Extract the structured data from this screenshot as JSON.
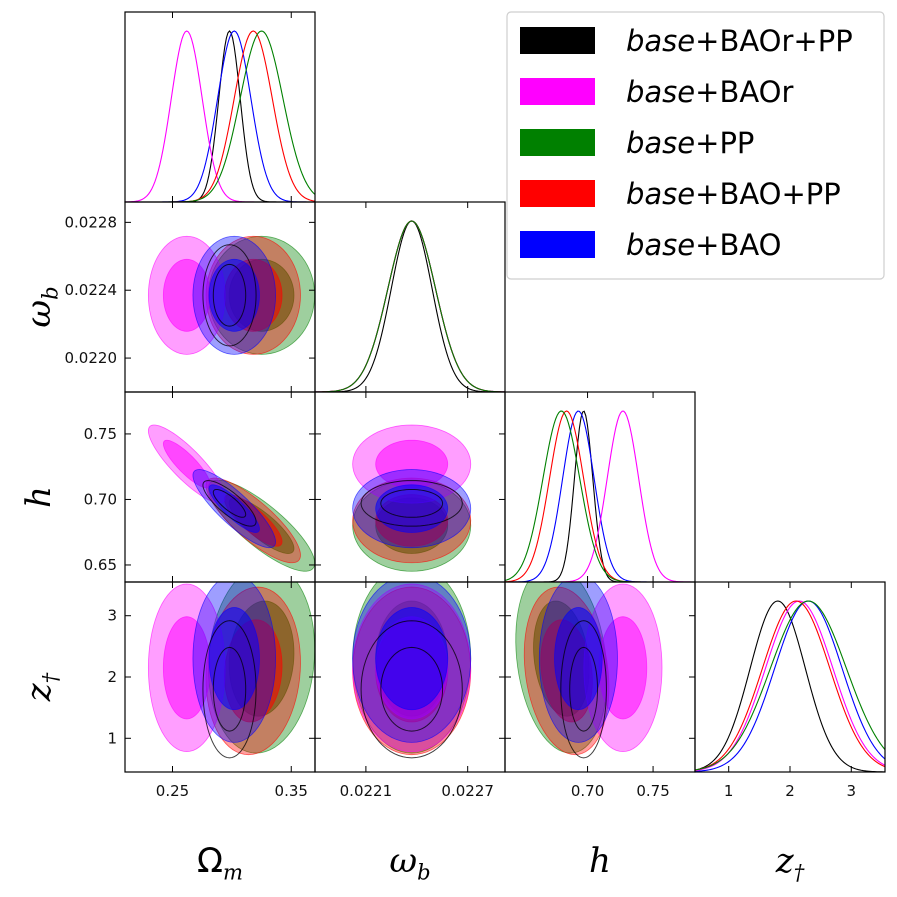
{
  "chart_data": {
    "type": "corner",
    "parameters": [
      {
        "id": "om",
        "label": "Ω",
        "sub": "m",
        "range": [
          0.21,
          0.37
        ],
        "ticks": [
          0.25,
          0.35
        ],
        "tick_labels": [
          "0.25",
          "0.35"
        ]
      },
      {
        "id": "wb",
        "label": "ω",
        "sub": "b",
        "range": [
          0.0218,
          0.02292
        ],
        "ticks": [
          0.0221,
          0.0227
        ],
        "tick_labels": [
          "0.0221",
          "0.0227"
        ],
        "y_ticks": [
          0.022,
          0.0224,
          0.0228
        ],
        "y_tick_labels": [
          "0.0220",
          "0.0224",
          "0.0228"
        ]
      },
      {
        "id": "h",
        "label": "h",
        "sub": "",
        "range": [
          0.637,
          0.782
        ],
        "ticks": [
          0.7,
          0.75
        ],
        "tick_labels": [
          "0.70",
          "0.75"
        ],
        "y_ticks": [
          0.65,
          0.7,
          0.75
        ],
        "y_tick_labels": [
          "0.65",
          "0.70",
          "0.75"
        ]
      },
      {
        "id": "z",
        "label": "z",
        "sub": "†",
        "range": [
          0.45,
          3.55
        ],
        "ticks": [
          1,
          2,
          3
        ],
        "tick_labels": [
          "1",
          "2",
          "3"
        ],
        "y_ticks": [
          1,
          2,
          3
        ],
        "y_tick_labels": [
          "1",
          "2",
          "3"
        ]
      }
    ],
    "legend": {
      "placement": "top-right",
      "entries": [
        {
          "italic": "base",
          "rest": "+BAOr+PP",
          "color": "#000000"
        },
        {
          "italic": "base",
          "rest": "+BAOr",
          "color": "#ff00ff"
        },
        {
          "italic": "base",
          "rest": "+PP",
          "color": "#008000"
        },
        {
          "italic": "base",
          "rest": "+BAO+PP",
          "color": "#ff0000"
        },
        {
          "italic": "base",
          "rest": "+BAO",
          "color": "#0000ff"
        }
      ]
    },
    "series": [
      {
        "name": "base+PP",
        "color": "#008000",
        "mean": {
          "om": 0.325,
          "wb": 0.02237,
          "h": 0.68,
          "z": 2.3
        },
        "sigma": {
          "om": 0.018,
          "wb": 0.00014,
          "h": 0.014,
          "z": 0.62
        },
        "corr": {
          "om-h": -0.82,
          "om-z": 0.1,
          "h-z": -0.2,
          "om-wb": 0.0,
          "wb-h": 0.0,
          "wb-z": 0.0
        },
        "filled": true,
        "outline": false
      },
      {
        "name": "base+BAO+PP",
        "color": "#ff0000",
        "mean": {
          "om": 0.318,
          "wb": 0.02237,
          "h": 0.684,
          "z": 2.1
        },
        "sigma": {
          "om": 0.016,
          "wb": 0.00014,
          "h": 0.013,
          "z": 0.55
        },
        "corr": {
          "om-h": -0.82,
          "om-z": 0.1,
          "h-z": -0.2,
          "om-wb": 0.0,
          "wb-h": 0.0,
          "wb-z": 0.0
        },
        "filled": true,
        "outline": false
      },
      {
        "name": "base+BAOr",
        "color": "#ff00ff",
        "mean": {
          "om": 0.262,
          "wb": 0.02237,
          "h": 0.727,
          "z": 2.15
        },
        "sigma": {
          "om": 0.013,
          "wb": 0.00014,
          "h": 0.012,
          "z": 0.55
        },
        "corr": {
          "om-h": -0.85,
          "om-z": 0.0,
          "h-z": 0.0,
          "om-wb": 0.0,
          "wb-h": 0.0,
          "wb-z": 0.0
        },
        "filled": true,
        "outline": false
      },
      {
        "name": "base+BAO",
        "color": "#0000ff",
        "mean": {
          "om": 0.302,
          "wb": 0.02237,
          "h": 0.693,
          "z": 2.3
        },
        "sigma": {
          "om": 0.014,
          "wb": 0.00014,
          "h": 0.012,
          "z": 0.55
        },
        "corr": {
          "om-h": -0.85,
          "om-z": 0.0,
          "h-z": 0.0,
          "om-wb": 0.0,
          "wb-h": 0.0,
          "wb-z": 0.0
        },
        "filled": true,
        "outline": false
      },
      {
        "name": "base+BAOr+PP",
        "color": "#000000",
        "mean": {
          "om": 0.298,
          "wb": 0.02237,
          "h": 0.697,
          "z": 1.8
        },
        "sigma": {
          "om": 0.009,
          "wb": 0.00012,
          "h": 0.007,
          "z": 0.45
        },
        "corr": {
          "om-h": -0.8,
          "om-z": 0.0,
          "h-z": 0.0,
          "om-wb": 0.0,
          "wb-h": 0.0,
          "wb-z": 0.0
        },
        "filled": false,
        "outline": true
      }
    ]
  }
}
